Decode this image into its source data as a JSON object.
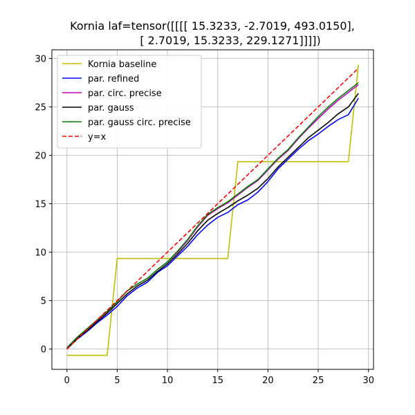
{
  "chart_data": {
    "type": "line",
    "title_lines": [
      "Kornia laf=tensor([[[[ 15.3233,  -2.7019, 493.0150],",
      "[  2.7019,  15.3233, 229.1271]]]])"
    ],
    "xlabel": "",
    "ylabel": "",
    "xlim": [
      -1.5,
      30.5
    ],
    "ylim": [
      -2.1,
      30.9
    ],
    "xticks": [
      0,
      5,
      10,
      15,
      20,
      25,
      30
    ],
    "yticks": [
      0,
      5,
      10,
      15,
      20,
      25,
      30
    ],
    "grid": true,
    "legend_position": "top-left",
    "x": [
      0,
      1,
      2,
      3,
      4,
      5,
      6,
      7,
      8,
      9,
      10,
      11,
      12,
      13,
      14,
      15,
      16,
      17,
      18,
      19,
      20,
      21,
      22,
      23,
      24,
      25,
      26,
      27,
      28,
      29
    ],
    "series": [
      {
        "name": "Kornia baseline",
        "color": "#bfbf00",
        "dash": "solid",
        "x": [
          0,
          4,
          5,
          16,
          17,
          28,
          29
        ],
        "values": [
          -0.65,
          -0.65,
          9.35,
          9.35,
          19.35,
          19.35,
          29.35
        ]
      },
      {
        "name": "par. refined",
        "color": "#0000ff",
        "dash": "solid",
        "values": [
          0.0,
          1.0,
          1.8,
          2.7,
          3.5,
          4.4,
          5.5,
          6.3,
          6.9,
          7.9,
          8.6,
          9.6,
          10.6,
          11.8,
          12.8,
          13.6,
          14.1,
          14.9,
          15.4,
          16.2,
          17.3,
          18.6,
          19.6,
          20.6,
          21.5,
          22.2,
          23.0,
          23.7,
          24.2,
          25.9
        ]
      },
      {
        "name": "par. circ. precise",
        "color": "#bf00bf",
        "dash": "solid",
        "values": [
          0.15,
          1.2,
          2.05,
          2.95,
          3.85,
          4.9,
          6.0,
          6.7,
          7.3,
          8.2,
          9.0,
          10.0,
          11.2,
          12.6,
          13.8,
          14.5,
          15.1,
          15.9,
          16.7,
          17.4,
          18.5,
          19.6,
          20.5,
          21.7,
          22.8,
          23.8,
          24.8,
          25.7,
          26.5,
          27.3
        ]
      },
      {
        "name": "par. gauss",
        "color": "#000000",
        "dash": "solid",
        "values": [
          0.0,
          1.05,
          1.9,
          2.8,
          3.7,
          4.7,
          5.7,
          6.5,
          7.1,
          8.0,
          8.8,
          9.8,
          10.9,
          12.2,
          13.3,
          14.0,
          14.6,
          15.3,
          15.9,
          16.6,
          17.6,
          18.8,
          19.8,
          20.8,
          21.8,
          22.6,
          23.4,
          24.3,
          25.0,
          26.4
        ]
      },
      {
        "name": "par. gauss circ. precise",
        "color": "#008000",
        "dash": "solid",
        "values": [
          0.1,
          1.2,
          2.1,
          3.0,
          3.9,
          4.9,
          6.0,
          6.7,
          7.3,
          8.2,
          9.0,
          10.1,
          11.3,
          12.7,
          13.9,
          14.6,
          15.2,
          16.0,
          16.8,
          17.5,
          18.6,
          19.7,
          20.6,
          21.8,
          22.9,
          24.0,
          25.0,
          25.9,
          26.7,
          27.5
        ]
      },
      {
        "name": "y=x",
        "color": "#ff0000",
        "dash": "dashed",
        "values": [
          0,
          1,
          2,
          3,
          4,
          5,
          6,
          7,
          8,
          9,
          10,
          11,
          12,
          13,
          14,
          15,
          16,
          17,
          18,
          19,
          20,
          21,
          22,
          23,
          24,
          25,
          26,
          27,
          28,
          29
        ]
      }
    ]
  }
}
